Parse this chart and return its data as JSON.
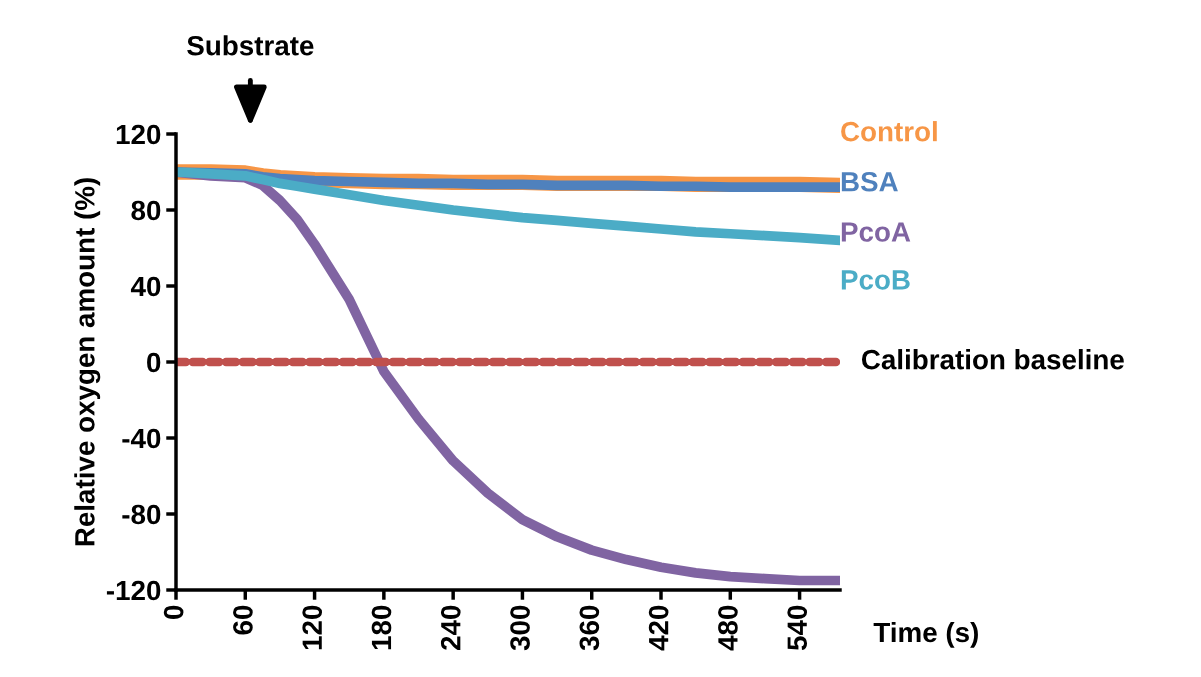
{
  "chart_data": {
    "type": "line",
    "xlabel": "Time (s)",
    "ylabel": "Relative oxygen amount (%)",
    "x": [
      0,
      30,
      60,
      75,
      90,
      105,
      120,
      150,
      180,
      210,
      240,
      270,
      300,
      330,
      360,
      390,
      420,
      450,
      480,
      510,
      540,
      575
    ],
    "xlim": [
      0,
      575
    ],
    "xticks": [
      0,
      60,
      120,
      180,
      240,
      300,
      360,
      420,
      480,
      540
    ],
    "ylim": [
      -120,
      120
    ],
    "yticks": [
      -120,
      -80,
      -40,
      0,
      40,
      80,
      120
    ],
    "grid": false,
    "legend": false,
    "marker": "none",
    "annotations": [
      "Substrate"
    ],
    "series": [
      {
        "name": "Control",
        "color": "#f79646",
        "line_style": "solid",
        "values": [
          100,
          100,
          99.5,
          98,
          97,
          96.5,
          96,
          95.5,
          95,
          95,
          94.5,
          94.5,
          94.5,
          94,
          94,
          94,
          94,
          93.5,
          93.5,
          93.5,
          93.5,
          93
        ]
      },
      {
        "name": "BSA",
        "color": "#4f81bd",
        "line_style": "solid",
        "values": [
          100,
          99.5,
          99,
          97.5,
          96.5,
          96,
          95.5,
          95,
          94.5,
          94,
          94,
          93.5,
          93.5,
          93,
          93,
          93,
          92.5,
          92.5,
          92,
          92,
          92,
          92
        ]
      },
      {
        "name": "PcoA",
        "color": "#8064a2",
        "line_style": "solid",
        "values": [
          100,
          98,
          97,
          93,
          85,
          75,
          62,
          33,
          -5,
          -30,
          -52,
          -69,
          -83,
          -92,
          -99,
          -104,
          -108,
          -111,
          -113,
          -114,
          -115,
          -115
        ]
      },
      {
        "name": "PcoB",
        "color": "#4bacc6",
        "line_style": "solid",
        "values": [
          100,
          99,
          98,
          96,
          94,
          92.5,
          91,
          88,
          85,
          82.5,
          80,
          78,
          76,
          74.5,
          73,
          71.5,
          70,
          68.5,
          67.5,
          66.5,
          65.5,
          64
        ]
      },
      {
        "name": "Calibration baseline",
        "color": "#c0504d",
        "line_style": "dashed",
        "values": [
          0,
          0,
          0,
          0,
          0,
          0,
          0,
          0,
          0,
          0,
          0,
          0,
          0,
          0,
          0,
          0,
          0,
          0,
          0,
          0,
          0,
          0
        ]
      }
    ]
  }
}
